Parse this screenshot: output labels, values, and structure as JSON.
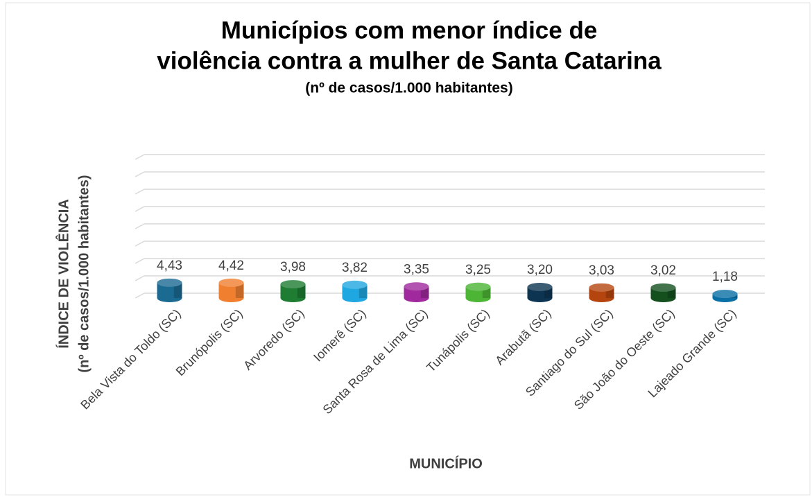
{
  "chart_data": {
    "type": "bar",
    "title": [
      "Municípios com menor índice de",
      "violência contra a mulher de Santa Catarina"
    ],
    "subtitle": "(nº de casos/1.000 habitantes)",
    "ylabel": [
      "ÍNDICE DE VIOLÊNCIA",
      "(nº de casos/1.000 habitantes)"
    ],
    "xlabel": "MUNICÍPIO",
    "categories": [
      "Bela Vista do Toldo (SC)",
      "Brunópolis (SC)",
      "Arvoredo (SC)",
      "Iomerê (SC)",
      "Santa Rosa de Lima (SC)",
      "Tunápolis (SC)",
      "Arabutã (SC)",
      "Santiago do Sul (SC)",
      "São João do Oeste (SC)",
      "Lajeado Grande (SC)"
    ],
    "values": [
      4.43,
      4.42,
      3.98,
      3.82,
      3.35,
      3.25,
      3.2,
      3.03,
      3.02,
      1.18
    ],
    "value_labels": [
      "4,43",
      "4,42",
      "3,98",
      "3,82",
      "3,35",
      "3,25",
      "3,20",
      "3,03",
      "3,02",
      "1,18"
    ],
    "colors": [
      "#1b6a92",
      "#f07f30",
      "#1e7d32",
      "#1ea7e0",
      "#a0299e",
      "#4cb535",
      "#0d3552",
      "#b5450f",
      "#13501e",
      "#0a6fa5"
    ],
    "ylim": [
      0,
      40
    ],
    "yticks": [
      0,
      5,
      10,
      15,
      20,
      25,
      30,
      35,
      40
    ],
    "grid": true
  }
}
